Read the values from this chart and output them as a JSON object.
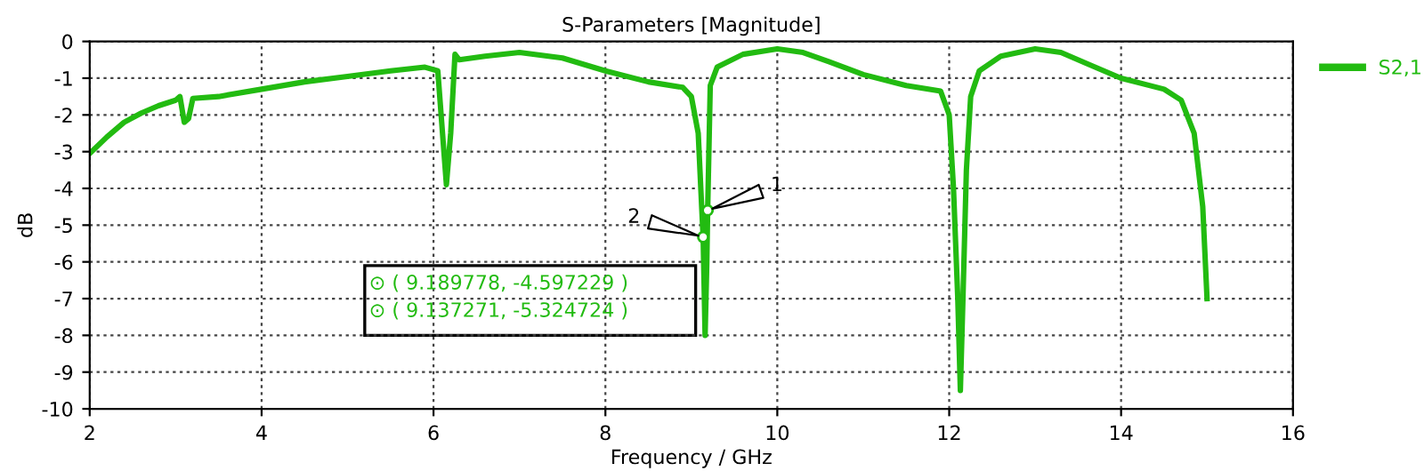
{
  "chart_data": {
    "type": "line",
    "title": "S-Parameters [Magnitude]",
    "xlabel": "Frequency / GHz",
    "ylabel": "dB",
    "series": [
      {
        "name": "S2,1",
        "color": "#22bb11",
        "x": [
          2.0,
          2.2,
          2.4,
          2.6,
          2.8,
          3.0,
          3.05,
          3.1,
          3.15,
          3.2,
          3.5,
          4.0,
          4.5,
          5.0,
          5.5,
          5.9,
          6.05,
          6.15,
          6.2,
          6.25,
          6.3,
          6.6,
          7.0,
          7.5,
          8.0,
          8.5,
          8.9,
          9.0,
          9.08,
          9.12,
          9.137271,
          9.16,
          9.18,
          9.189778,
          9.22,
          9.3,
          9.6,
          10.0,
          10.3,
          10.6,
          11.0,
          11.5,
          11.9,
          12.0,
          12.05,
          12.1,
          12.13,
          12.16,
          12.2,
          12.25,
          12.35,
          12.6,
          13.0,
          13.3,
          13.6,
          14.0,
          14.5,
          14.7,
          14.85,
          14.95,
          15.0
        ],
        "values": [
          -3.05,
          -2.6,
          -2.2,
          -1.95,
          -1.75,
          -1.6,
          -1.5,
          -2.2,
          -2.1,
          -1.55,
          -1.5,
          -1.3,
          -1.1,
          -0.95,
          -0.8,
          -0.7,
          -0.8,
          -3.9,
          -2.5,
          -0.35,
          -0.5,
          -0.4,
          -0.3,
          -0.45,
          -0.8,
          -1.1,
          -1.25,
          -1.5,
          -2.5,
          -4.5,
          -5.324724,
          -8.0,
          -6.0,
          -4.597229,
          -1.2,
          -0.7,
          -0.35,
          -0.2,
          -0.3,
          -0.55,
          -0.9,
          -1.2,
          -1.35,
          -2.0,
          -4.0,
          -7.0,
          -9.5,
          -7.0,
          -3.5,
          -1.5,
          -0.8,
          -0.4,
          -0.2,
          -0.3,
          -0.6,
          -1.0,
          -1.3,
          -1.6,
          -2.5,
          -4.5,
          -7.0
        ]
      }
    ],
    "xlim": [
      2,
      16
    ],
    "xticks": [
      2,
      4,
      6,
      8,
      10,
      12,
      14,
      16
    ],
    "ylim": [
      -10,
      0
    ],
    "yticks": [
      0,
      -1,
      -2,
      -3,
      -4,
      -5,
      -6,
      -7,
      -8,
      -9,
      -10
    ],
    "grid": true,
    "legend": "top right",
    "line_style": "solid",
    "marker": "none",
    "annotations": [
      {
        "text": "1",
        "x": 9.189778,
        "y": -4.597229
      },
      {
        "text": "2",
        "x": 9.137271,
        "y": -5.324724
      },
      "⊙ ( 9.189778, -4.597229 )",
      "⊙ ( 9.137271, -5.324724 )"
    ]
  }
}
